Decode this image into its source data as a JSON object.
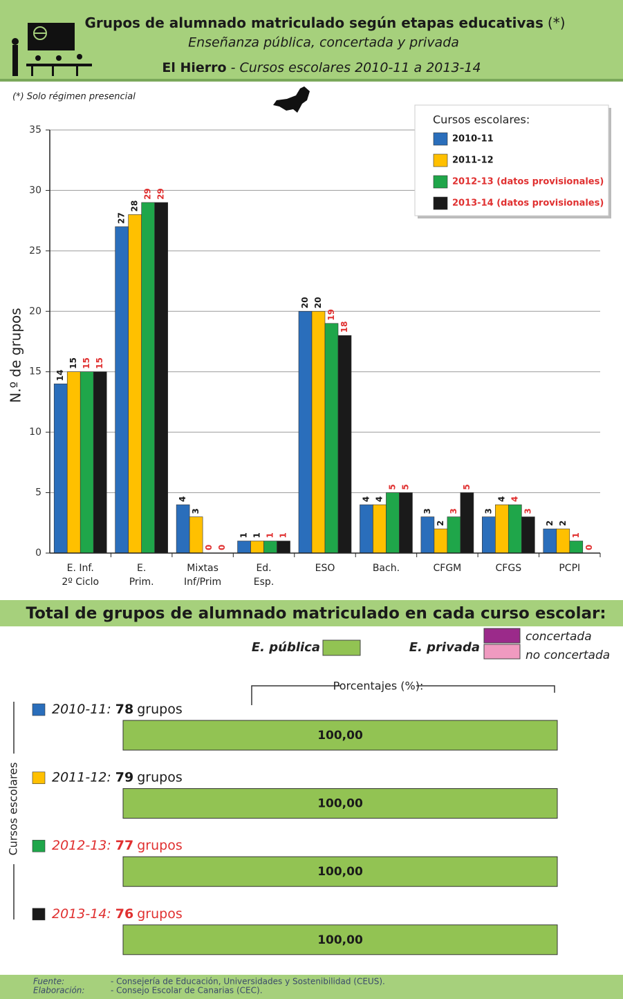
{
  "header": {
    "title": "Grupos de alumnado matriculado según etapas educativas",
    "title_mark": "(*)",
    "subtitle": "Enseñanza pública, concertada y privada",
    "island": "El Hierro",
    "period": "- Cursos escolares 2010-11 a 2013-14"
  },
  "note": "(*) Solo régimen presencial",
  "chart_data": [
    {
      "type": "bar",
      "y_label": "N.º de grupos",
      "legend_title": "Cursos escolares:",
      "categories": [
        "E. Inf.\n2º Ciclo",
        "E.\nPrim.",
        "Mixtas\nInf/Prim",
        "Ed.\nEsp.",
        "ESO",
        "Bach.",
        "CFGM",
        "CFGS",
        "PCPI"
      ],
      "series": [
        {
          "name": "2010-11",
          "color": "#2a6ebb",
          "label_color": "#1a1a1a",
          "values": [
            14,
            27,
            4,
            1,
            20,
            4,
            3,
            3,
            2
          ]
        },
        {
          "name": "2011-12",
          "color": "#ffc000",
          "label_color": "#1a1a1a",
          "values": [
            15,
            28,
            3,
            1,
            20,
            4,
            2,
            4,
            2
          ]
        },
        {
          "name": "2012-13 (datos provisionales)",
          "color": "#1fa64a",
          "label_color": "#e03030",
          "values": [
            15,
            29,
            0,
            1,
            19,
            5,
            3,
            4,
            1
          ]
        },
        {
          "name": "2013-14 (datos provisionales)",
          "color": "#1a1a1a",
          "label_color": "#e03030",
          "values": [
            15,
            29,
            0,
            1,
            18,
            5,
            5,
            3,
            0
          ]
        }
      ],
      "ylim": [
        0,
        35
      ],
      "yticks": [
        0,
        5,
        10,
        15,
        20,
        25,
        30,
        35
      ],
      "grid": true
    },
    {
      "type": "stacked_hbar",
      "title": "Total de grupos de alumnado matriculado en cada curso escolar:",
      "group_label": "E. privada",
      "axis_label": "Cursos escolares",
      "scale_label": "Porcentajes (%):",
      "categories": [
        "2010-11:",
        "2011-12:",
        "2012-13:",
        "2013-14:"
      ],
      "marker_colors": [
        "#2a6ebb",
        "#ffc000",
        "#1fa64a",
        "#1a1a1a"
      ],
      "label_colors": [
        "#1a1a1a",
        "#1a1a1a",
        "#e03030",
        "#e03030"
      ],
      "counts": [
        78,
        79,
        77,
        76
      ],
      "count_unit": "grupos",
      "xlim": [
        0,
        100
      ],
      "series": [
        {
          "name": "E. pública",
          "color": "#92c353",
          "values": [
            100,
            100,
            100,
            100
          ],
          "value_labels": [
            "100,00",
            "100,00",
            "100,00",
            "100,00"
          ]
        },
        {
          "name": "concertada",
          "color": "#9b2a8a",
          "values": [
            0,
            0,
            0,
            0
          ]
        },
        {
          "name": "no concertada",
          "color": "#f09ac0",
          "values": [
            0,
            0,
            0,
            0
          ]
        }
      ]
    }
  ],
  "footer": {
    "rows": [
      [
        "Fuente:",
        "- Consejería de Educación, Universidades y Sostenibilidad (CEUS)."
      ],
      [
        "Elaboración:",
        "- Consejo Escolar de Canarias (CEC)."
      ]
    ]
  }
}
